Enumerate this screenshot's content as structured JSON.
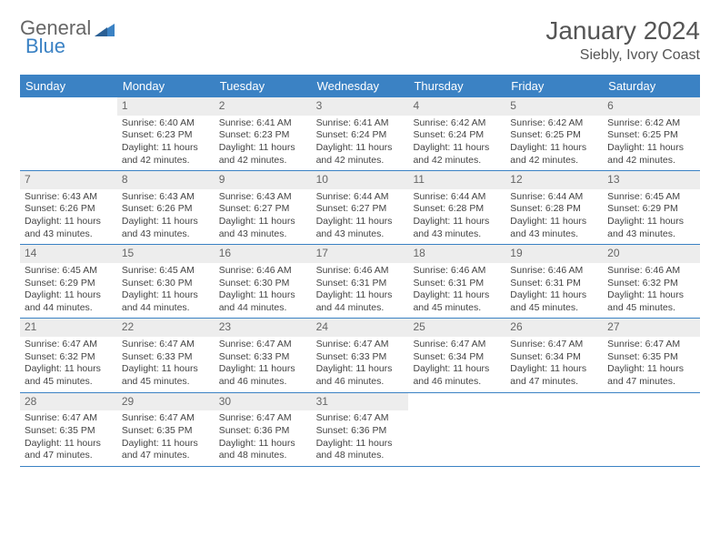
{
  "brand": {
    "part1": "General",
    "part2": "Blue"
  },
  "title": "January 2024",
  "location": "Siebly, Ivory Coast",
  "colors": {
    "header_bg": "#3b82c4",
    "header_text": "#ffffff",
    "daynum_bg": "#ededed",
    "text": "#444444",
    "border": "#3b82c4"
  },
  "daysOfWeek": [
    "Sunday",
    "Monday",
    "Tuesday",
    "Wednesday",
    "Thursday",
    "Friday",
    "Saturday"
  ],
  "startOffset": 1,
  "days": [
    {
      "n": 1,
      "sr": "6:40 AM",
      "ss": "6:23 PM",
      "dl": "11 hours and 42 minutes."
    },
    {
      "n": 2,
      "sr": "6:41 AM",
      "ss": "6:23 PM",
      "dl": "11 hours and 42 minutes."
    },
    {
      "n": 3,
      "sr": "6:41 AM",
      "ss": "6:24 PM",
      "dl": "11 hours and 42 minutes."
    },
    {
      "n": 4,
      "sr": "6:42 AM",
      "ss": "6:24 PM",
      "dl": "11 hours and 42 minutes."
    },
    {
      "n": 5,
      "sr": "6:42 AM",
      "ss": "6:25 PM",
      "dl": "11 hours and 42 minutes."
    },
    {
      "n": 6,
      "sr": "6:42 AM",
      "ss": "6:25 PM",
      "dl": "11 hours and 42 minutes."
    },
    {
      "n": 7,
      "sr": "6:43 AM",
      "ss": "6:26 PM",
      "dl": "11 hours and 43 minutes."
    },
    {
      "n": 8,
      "sr": "6:43 AM",
      "ss": "6:26 PM",
      "dl": "11 hours and 43 minutes."
    },
    {
      "n": 9,
      "sr": "6:43 AM",
      "ss": "6:27 PM",
      "dl": "11 hours and 43 minutes."
    },
    {
      "n": 10,
      "sr": "6:44 AM",
      "ss": "6:27 PM",
      "dl": "11 hours and 43 minutes."
    },
    {
      "n": 11,
      "sr": "6:44 AM",
      "ss": "6:28 PM",
      "dl": "11 hours and 43 minutes."
    },
    {
      "n": 12,
      "sr": "6:44 AM",
      "ss": "6:28 PM",
      "dl": "11 hours and 43 minutes."
    },
    {
      "n": 13,
      "sr": "6:45 AM",
      "ss": "6:29 PM",
      "dl": "11 hours and 43 minutes."
    },
    {
      "n": 14,
      "sr": "6:45 AM",
      "ss": "6:29 PM",
      "dl": "11 hours and 44 minutes."
    },
    {
      "n": 15,
      "sr": "6:45 AM",
      "ss": "6:30 PM",
      "dl": "11 hours and 44 minutes."
    },
    {
      "n": 16,
      "sr": "6:46 AM",
      "ss": "6:30 PM",
      "dl": "11 hours and 44 minutes."
    },
    {
      "n": 17,
      "sr": "6:46 AM",
      "ss": "6:31 PM",
      "dl": "11 hours and 44 minutes."
    },
    {
      "n": 18,
      "sr": "6:46 AM",
      "ss": "6:31 PM",
      "dl": "11 hours and 45 minutes."
    },
    {
      "n": 19,
      "sr": "6:46 AM",
      "ss": "6:31 PM",
      "dl": "11 hours and 45 minutes."
    },
    {
      "n": 20,
      "sr": "6:46 AM",
      "ss": "6:32 PM",
      "dl": "11 hours and 45 minutes."
    },
    {
      "n": 21,
      "sr": "6:47 AM",
      "ss": "6:32 PM",
      "dl": "11 hours and 45 minutes."
    },
    {
      "n": 22,
      "sr": "6:47 AM",
      "ss": "6:33 PM",
      "dl": "11 hours and 45 minutes."
    },
    {
      "n": 23,
      "sr": "6:47 AM",
      "ss": "6:33 PM",
      "dl": "11 hours and 46 minutes."
    },
    {
      "n": 24,
      "sr": "6:47 AM",
      "ss": "6:33 PM",
      "dl": "11 hours and 46 minutes."
    },
    {
      "n": 25,
      "sr": "6:47 AM",
      "ss": "6:34 PM",
      "dl": "11 hours and 46 minutes."
    },
    {
      "n": 26,
      "sr": "6:47 AM",
      "ss": "6:34 PM",
      "dl": "11 hours and 47 minutes."
    },
    {
      "n": 27,
      "sr": "6:47 AM",
      "ss": "6:35 PM",
      "dl": "11 hours and 47 minutes."
    },
    {
      "n": 28,
      "sr": "6:47 AM",
      "ss": "6:35 PM",
      "dl": "11 hours and 47 minutes."
    },
    {
      "n": 29,
      "sr": "6:47 AM",
      "ss": "6:35 PM",
      "dl": "11 hours and 47 minutes."
    },
    {
      "n": 30,
      "sr": "6:47 AM",
      "ss": "6:36 PM",
      "dl": "11 hours and 48 minutes."
    },
    {
      "n": 31,
      "sr": "6:47 AM",
      "ss": "6:36 PM",
      "dl": "11 hours and 48 minutes."
    }
  ],
  "labels": {
    "sunrise": "Sunrise:",
    "sunset": "Sunset:",
    "daylight": "Daylight:"
  }
}
